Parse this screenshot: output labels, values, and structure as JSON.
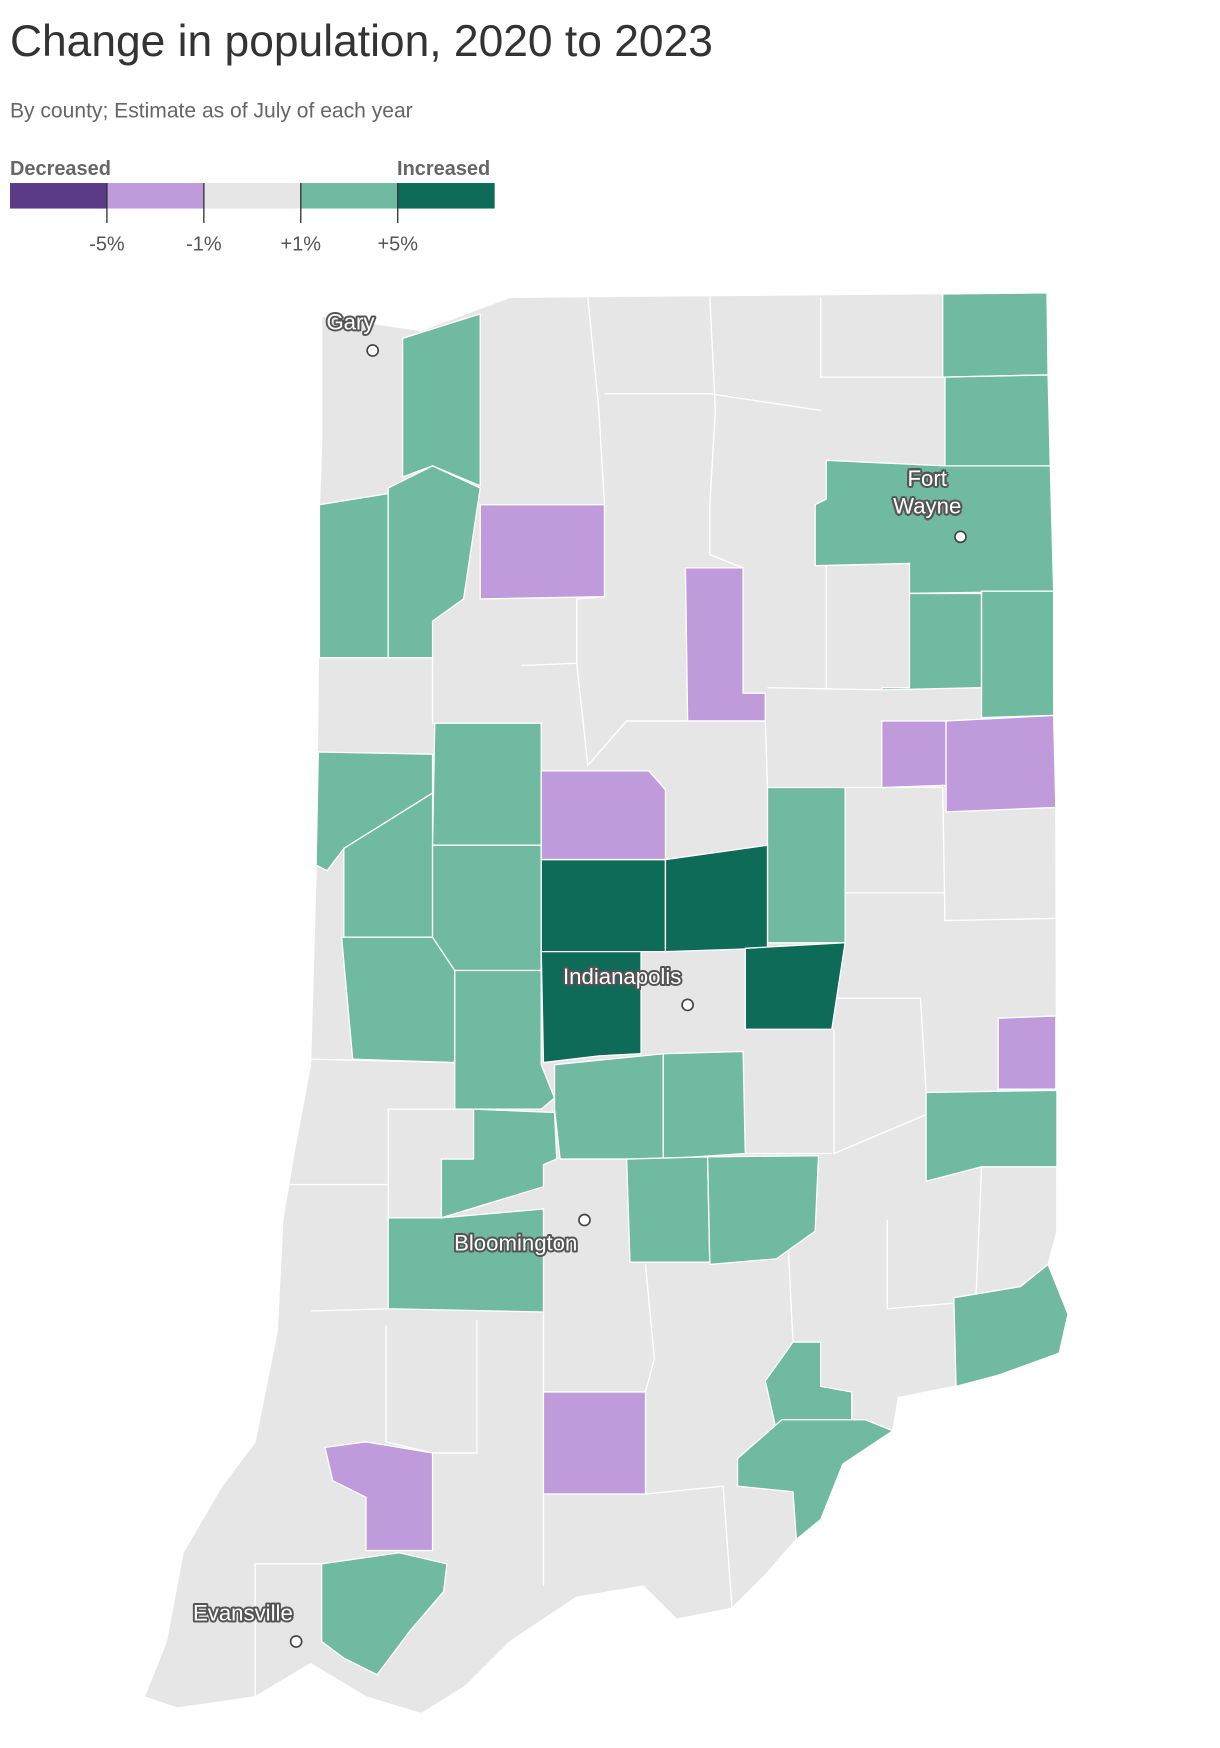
{
  "title": "Change in population, 2020 to 2023",
  "subtitle": "By county; Estimate as of July of each year",
  "legend": {
    "low_label": "Decreased",
    "high_label": "Increased",
    "colors": [
      "#5b3a87",
      "#c09bdc",
      "#e6e6e6",
      "#6fbaa1",
      "#0e6b58"
    ],
    "ticks": [
      {
        "value": -5,
        "label": "-5%"
      },
      {
        "value": -1,
        "label": "-1%"
      },
      {
        "value": 1,
        "label": "+1%"
      },
      {
        "value": 5,
        "label": "+5%"
      }
    ]
  },
  "cities": [
    {
      "name": "Gary"
    },
    {
      "name": "Fort Wayne"
    },
    {
      "name": "Indianapolis"
    },
    {
      "name": "Bloomington"
    },
    {
      "name": "Evansville"
    }
  ]
}
